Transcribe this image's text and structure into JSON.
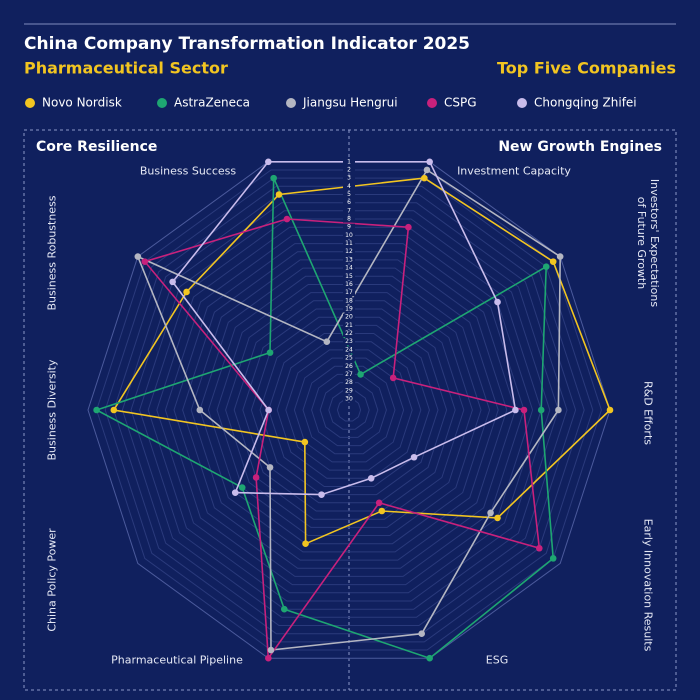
{
  "chart_data": {
    "type": "radar",
    "title": "China Company Transformation Indicator 2025",
    "subtitle": "Pharmaceutical Sector",
    "subtitle_right": "Top Five Companies",
    "sections": [
      "Core Resilience",
      "New Growth Engines"
    ],
    "categories": [
      "Investment Capacity",
      "Investors' Expectations of Future Growth",
      "R&D Efforts",
      "Early Innovation Results",
      "ESG",
      "Pharmaceutical Pipeline",
      "China Policy Power",
      "Business Diversity",
      "Business Robustness",
      "Business Success"
    ],
    "rlim": [
      30,
      1
    ],
    "rticks": [
      1,
      2,
      3,
      4,
      5,
      6,
      7,
      8,
      9,
      10,
      11,
      12,
      13,
      14,
      15,
      16,
      17,
      18,
      19,
      20,
      21,
      22,
      23,
      24,
      25,
      26,
      27,
      28,
      29,
      30
    ],
    "grid": true,
    "series": [
      {
        "name": "Novo Nordisk",
        "color": "#f2c521",
        "values": [
          3,
          2,
          1,
          10,
          19,
          15,
          25,
          4,
          8,
          5
        ]
      },
      {
        "name": "AstraZeneca",
        "color": "#1ea672",
        "values": [
          27,
          3,
          9,
          2,
          1,
          7,
          16,
          2,
          20,
          3
        ]
      },
      {
        "name": "Jiangsu Hengrui",
        "color": "#b4b6c2",
        "values": [
          2,
          1,
          7,
          11,
          4,
          2,
          20,
          14,
          1,
          23
        ]
      },
      {
        "name": "CSPG",
        "color": "#c8217c",
        "values": [
          9,
          25,
          11,
          4,
          20,
          1,
          18,
          22,
          2,
          8
        ]
      },
      {
        "name": "Chongqing Zhifei",
        "color": "#c9bcec",
        "values": [
          1,
          10,
          12,
          22,
          23,
          21,
          15,
          22,
          6,
          1
        ]
      }
    ]
  }
}
